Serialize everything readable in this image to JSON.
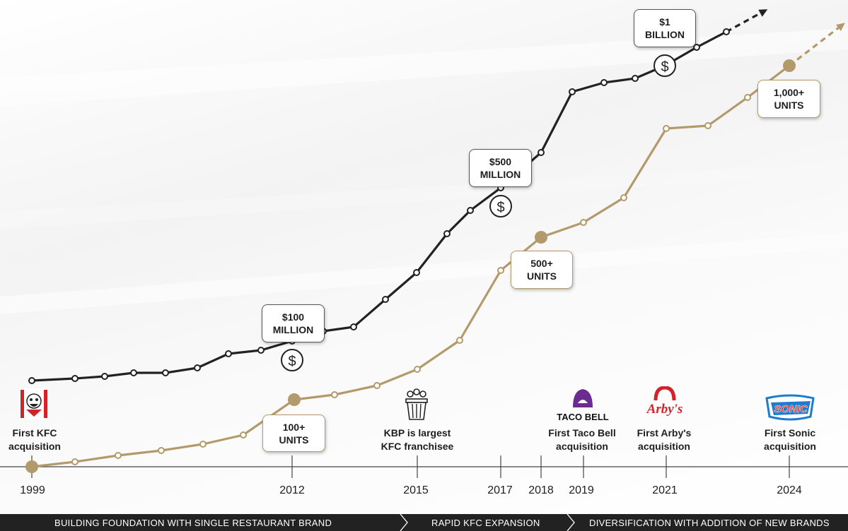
{
  "chart_data": {
    "type": "line",
    "x_ticks": [
      "1999",
      "2012",
      "2015",
      "2017",
      "2018",
      "2019",
      "2021",
      "2024"
    ],
    "series": [
      {
        "color": "#222222",
        "milestones": [
          "$100 MILLION",
          "$500 MILLION",
          "$1 BILLION"
        ]
      },
      {
        "color": "#b39a6a",
        "milestones": [
          "100+ UNITS",
          "500+ UNITS",
          "1,000+ UNITS"
        ]
      }
    ]
  },
  "callouts": {
    "m100": [
      "$100",
      "MILLION"
    ],
    "m500": [
      "$500",
      "MILLION"
    ],
    "b1": [
      "$1",
      "BILLION"
    ],
    "u100": [
      "100+",
      "UNITS"
    ],
    "u500": [
      "500+",
      "UNITS"
    ],
    "u1000": [
      "1,000+",
      "UNITS"
    ]
  },
  "milestones": {
    "kfc": [
      "First KFC",
      "acquisition"
    ],
    "kbp": [
      "KBP is largest",
      "KFC franchisee"
    ],
    "tacobell": [
      "First Taco Bell",
      "acquisition"
    ],
    "arbys": [
      "First Arby's",
      "acquisition"
    ],
    "sonic": [
      "First Sonic",
      "acquisition"
    ]
  },
  "logos": {
    "kfc": "KFC",
    "tacobell": "TACO BELL",
    "arbys": "Arby's",
    "sonic": "SONIC"
  },
  "phases": [
    "BUILDING FOUNDATION WITH SINGLE RESTAURANT BRAND",
    "RAPID KFC EXPANSION",
    "DIVERSIFICATION WITH ADDITION OF NEW BRANDS"
  ],
  "icons": {
    "dollar": "$",
    "bucket": "fried-chicken-bucket-icon"
  },
  "colors": {
    "revenue_line": "#222222",
    "units_line": "#b39a6a",
    "tacobell_purple": "#6b2c91",
    "arbys_red": "#d2232a",
    "sonic_blue": "#1e7ccf",
    "sonic_red": "#e2231a"
  }
}
